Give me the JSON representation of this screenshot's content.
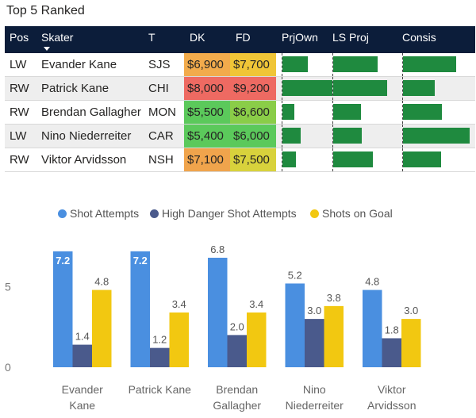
{
  "title": "Top 5 Ranked",
  "table": {
    "columns": [
      "Pos",
      "Skater",
      "T",
      "DK",
      "FD",
      "PrjOwn",
      "LS Proj",
      "Consis"
    ],
    "rows": [
      {
        "pos": "LW",
        "skater": "Evander Kane",
        "team": "SJS",
        "dk": "$6,900",
        "fd": "$7,700",
        "dk_color": "#f2ab4c",
        "fd_color": "#f0c537",
        "prjown": 0.45,
        "lsproj": 0.75,
        "consis": 0.8
      },
      {
        "pos": "RW",
        "skater": "Patrick Kane",
        "team": "CHI",
        "dk": "$8,000",
        "fd": "$9,200",
        "dk_color": "#ee6a62",
        "fd_color": "#ee6a62",
        "prjown": 0.9,
        "lsproj": 0.9,
        "consis": 0.48
      },
      {
        "pos": "RW",
        "skater": "Brendan Gallagher",
        "team": "MON",
        "dk": "$5,500",
        "fd": "$6,600",
        "dk_color": "#5bc95b",
        "fd_color": "#8acd48",
        "prjown": 0.22,
        "lsproj": 0.47,
        "consis": 0.58
      },
      {
        "pos": "LW",
        "skater": "Nino Niederreiter",
        "team": "CAR",
        "dk": "$5,400",
        "fd": "$6,000",
        "dk_color": "#5bc95b",
        "fd_color": "#5bc95b",
        "prjown": 0.33,
        "lsproj": 0.48,
        "consis": 1.0
      },
      {
        "pos": "RW",
        "skater": "Viktor Arvidsson",
        "team": "NSH",
        "dk": "$7,100",
        "fd": "$7,500",
        "dk_color": "#f0a44c",
        "fd_color": "#d8d23c",
        "prjown": 0.24,
        "lsproj": 0.66,
        "consis": 0.57
      }
    ],
    "bar_color": "#1f8a3f",
    "header_bg": "#0c1d3a"
  },
  "chart_data": {
    "type": "bar",
    "categories": [
      [
        "Evander",
        "Kane"
      ],
      [
        "Patrick Kane"
      ],
      [
        "Brendan",
        "Gallagher"
      ],
      [
        "Nino",
        "Niederreiter"
      ],
      [
        "Viktor",
        "Arvidsson"
      ]
    ],
    "series": [
      {
        "name": "Shot Attempts",
        "color": "#4a8fe0",
        "values": [
          7.2,
          7.2,
          6.8,
          5.2,
          4.8
        ],
        "labels": [
          "7.2",
          "7.2",
          "6.8",
          "5.2",
          "4.8"
        ]
      },
      {
        "name": "High Danger Shot Attempts",
        "color": "#4a5a8c",
        "values": [
          1.4,
          1.2,
          2.0,
          3.0,
          1.8
        ],
        "labels": [
          "1.4",
          "1.2",
          "2.0",
          "3.0",
          "1.8"
        ]
      },
      {
        "name": "Shots on Goal",
        "color": "#f2c811",
        "values": [
          4.8,
          3.4,
          3.4,
          3.8,
          3.0
        ],
        "labels": [
          "4.8",
          "3.4",
          "3.4",
          "3.8",
          "3.0"
        ]
      }
    ],
    "yticks": [
      "0",
      "5"
    ],
    "ylim": [
      0,
      7.6
    ],
    "legend_position": "top",
    "grid": false
  }
}
